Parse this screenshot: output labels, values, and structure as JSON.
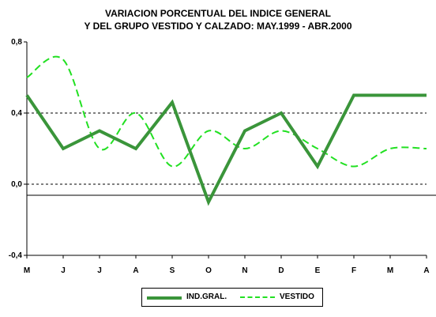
{
  "chart_data": {
    "type": "line",
    "title": "VARIACION PORCENTUAL DEL INDICE GENERAL",
    "subtitle": "Y DEL GRUPO VESTIDO Y CALZADO: MAY.1999 - ABR.2000",
    "categories": [
      "M",
      "J",
      "J",
      "A",
      "S",
      "O",
      "N",
      "D",
      "E",
      "F",
      "M",
      "A"
    ],
    "ylim": [
      -0.4,
      0.8
    ],
    "yticks": [
      -0.4,
      0.0,
      0.4,
      0.8
    ],
    "ytick_labels": [
      "-0,4",
      "0,0",
      "0,4",
      "0,8"
    ],
    "grid": "horizontal dashed",
    "legend_position": "bottom",
    "series": [
      {
        "name": "IND.GRAL.",
        "color": "#3a953a",
        "style": "solid",
        "values": [
          0.5,
          0.2,
          0.3,
          0.2,
          0.46,
          -0.1,
          0.3,
          0.4,
          0.1,
          0.5,
          0.5,
          0.5
        ]
      },
      {
        "name": "VESTIDO",
        "color": "#22e022",
        "style": "dashed",
        "values": [
          0.6,
          0.7,
          0.2,
          0.4,
          0.1,
          0.3,
          0.2,
          0.3,
          0.2,
          0.1,
          0.2,
          0.2
        ]
      }
    ]
  }
}
